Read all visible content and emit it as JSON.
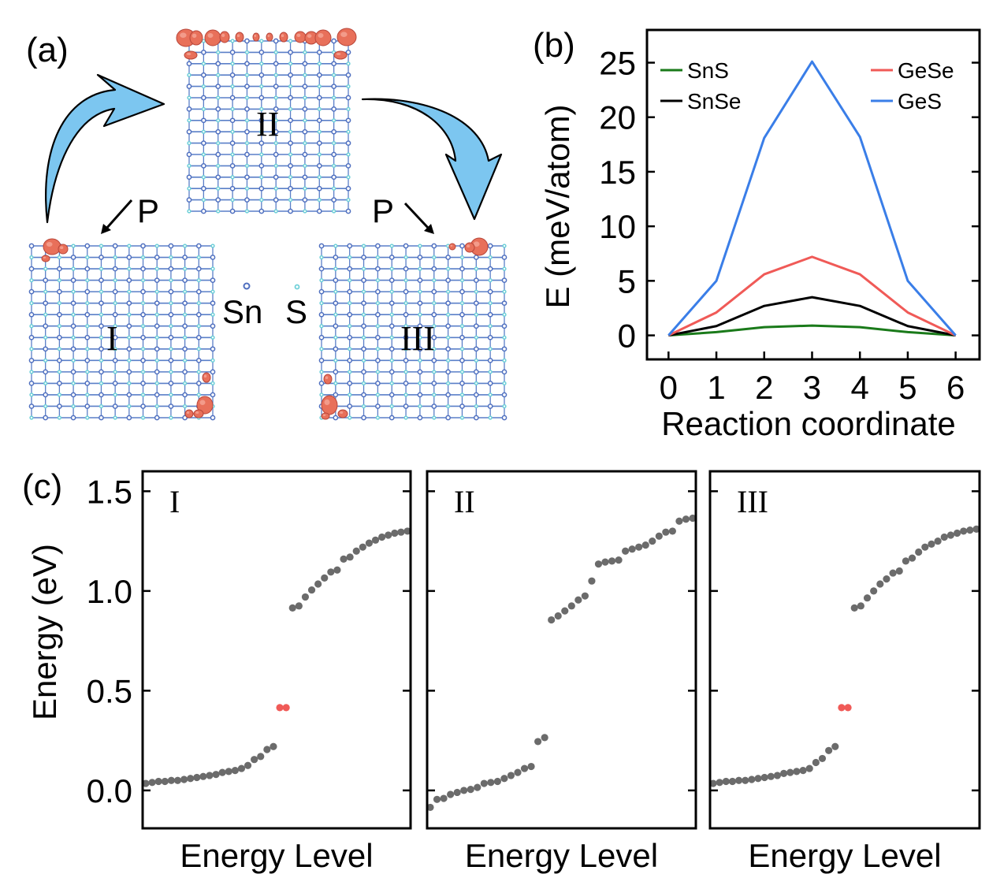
{
  "panels": {
    "a": {
      "label": "(a)",
      "structures": [
        {
          "id": "I",
          "label": "I",
          "defect_site": "left-top, right-bottom"
        },
        {
          "id": "II",
          "label": "II",
          "defect_site": "top"
        },
        {
          "id": "III",
          "label": "III",
          "defect_site": "right-top, left-bottom"
        }
      ],
      "pressure_labels": [
        "P",
        "P"
      ],
      "legend": {
        "sn": "Sn",
        "s": "S"
      },
      "colors": {
        "arrow": "#7cc6f0",
        "charge": "#e8705a",
        "sn_atom": "#4f6fbf",
        "s_atom": "#6fd0d8",
        "bond": "#5a7fc8"
      }
    },
    "b": {
      "label": "(b)"
    },
    "c": {
      "label": "(c)"
    }
  },
  "chart_data": [
    {
      "id": "b",
      "type": "line",
      "title": "",
      "xlabel": "Reaction coordinate",
      "ylabel": "E (meV/atom)",
      "x": [
        0,
        1,
        2,
        3,
        4,
        5,
        6
      ],
      "xlim": [
        -0.45,
        6.5
      ],
      "ylim": [
        -2.2,
        28
      ],
      "xticks": [
        "0",
        "1",
        "2",
        "3",
        "4",
        "5",
        "6"
      ],
      "yticks": [
        "0",
        "5",
        "10",
        "15",
        "20",
        "25"
      ],
      "ytick_values": [
        0,
        5,
        10,
        15,
        20,
        25
      ],
      "legend_position": "top-left and top-right",
      "series": [
        {
          "name": "SnS",
          "color": "#1a7a1a",
          "values": [
            0,
            0.3,
            0.75,
            0.9,
            0.75,
            0.3,
            0
          ]
        },
        {
          "name": "SnSe",
          "color": "#000000",
          "values": [
            0,
            0.85,
            2.7,
            3.5,
            2.7,
            0.85,
            0
          ]
        },
        {
          "name": "GeSe",
          "color": "#f05a57",
          "values": [
            0,
            2.1,
            5.6,
            7.2,
            5.6,
            2.1,
            0
          ]
        },
        {
          "name": "GeS",
          "color": "#3a7ee8",
          "values": [
            0,
            5.0,
            18.1,
            25.1,
            18.2,
            5.0,
            0
          ]
        }
      ]
    },
    {
      "id": "c",
      "type": "scatter",
      "xlabel": "Energy Level",
      "ylabel": "Energy (eV)",
      "ylim": [
        -0.19,
        1.6
      ],
      "yticks": [
        "0.0",
        "0.5",
        "1.0",
        "1.5"
      ],
      "ytick_values": [
        0,
        0.5,
        1.0,
        1.5
      ],
      "colors": {
        "state": "#6b6b6b",
        "defect": "#f05a57"
      },
      "subplots": [
        {
          "label": "I",
          "grey": [
            0.035,
            0.04,
            0.045,
            0.045,
            0.05,
            0.05,
            0.055,
            0.06,
            0.065,
            0.07,
            0.075,
            0.08,
            0.09,
            0.095,
            0.1,
            0.11,
            0.125,
            0.155,
            0.17,
            0.205,
            0.22,
            0.915,
            0.925,
            0.97,
            1.005,
            1.035,
            1.065,
            1.095,
            1.105,
            1.16,
            1.17,
            1.2,
            1.22,
            1.24,
            1.255,
            1.27,
            1.28,
            1.29,
            1.295,
            1.3
          ],
          "red": [
            0.415,
            0.415
          ]
        },
        {
          "label": "II",
          "grey": [
            -0.085,
            -0.045,
            -0.04,
            -0.02,
            -0.01,
            0.0,
            0.005,
            0.015,
            0.035,
            0.04,
            0.045,
            0.06,
            0.075,
            0.09,
            0.11,
            0.12,
            0.245,
            0.265,
            0.855,
            0.875,
            0.9,
            0.925,
            0.955,
            0.975,
            1.05,
            1.135,
            1.145,
            1.15,
            1.155,
            1.2,
            1.21,
            1.22,
            1.23,
            1.25,
            1.275,
            1.295,
            1.3,
            1.35,
            1.36,
            1.365
          ],
          "red": []
        },
        {
          "label": "III",
          "grey": [
            0.035,
            0.04,
            0.045,
            0.045,
            0.05,
            0.05,
            0.055,
            0.06,
            0.065,
            0.07,
            0.075,
            0.085,
            0.09,
            0.095,
            0.1,
            0.11,
            0.14,
            0.16,
            0.2,
            0.22,
            0.915,
            0.925,
            0.965,
            1.0,
            1.035,
            1.06,
            1.09,
            1.1,
            1.15,
            1.165,
            1.195,
            1.22,
            1.235,
            1.25,
            1.27,
            1.28,
            1.29,
            1.3,
            1.305,
            1.31
          ],
          "red": [
            0.415,
            0.415
          ]
        }
      ]
    }
  ]
}
